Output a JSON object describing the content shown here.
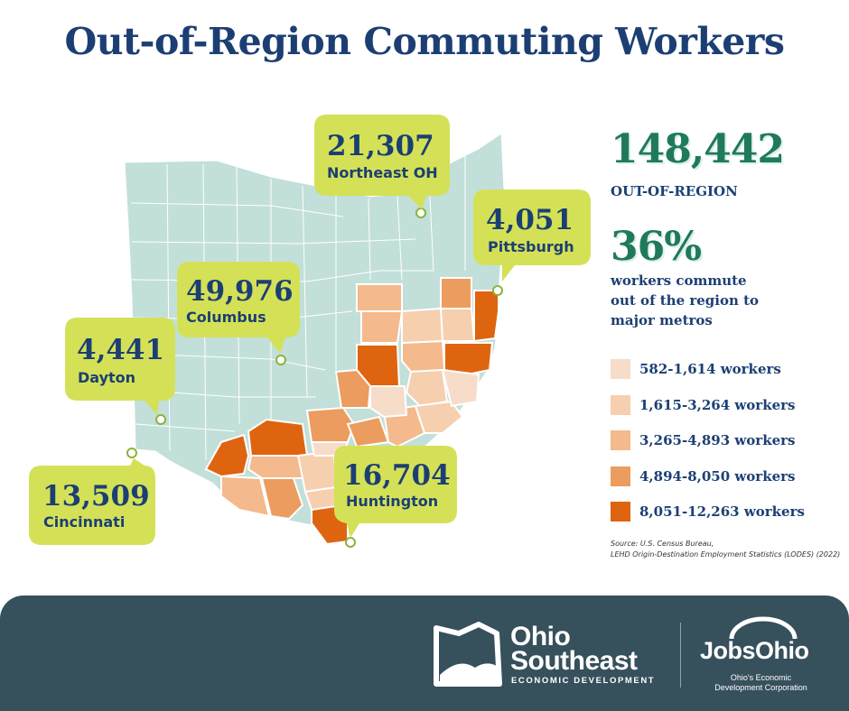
{
  "title": "Out-of-Region Commuting Workers",
  "colors": {
    "title": "#1c3f73",
    "accent_green": "#1f7a5c",
    "state_fill": "#c2dfd9",
    "callout_fill": "#d4e157",
    "footer_bg": "#36505c"
  },
  "stats": {
    "total_value": "148,442",
    "total_label": "OUT-OF-REGION",
    "percent_value": "36%",
    "percent_text": [
      "workers commute",
      "out of the region to",
      "major metros"
    ]
  },
  "legend": [
    {
      "label": "582-1,614 workers",
      "color": "#f7dcc9"
    },
    {
      "label": "1,615-3,264 workers",
      "color": "#f6cfae"
    },
    {
      "label": "3,265-4,893 workers",
      "color": "#f4b98c"
    },
    {
      "label": "4,894-8,050 workers",
      "color": "#ec9c5f"
    },
    {
      "label": "8,051-12,263 workers",
      "color": "#df6410"
    }
  ],
  "source": [
    "Source: U.S. Census Bureau,",
    "LEHD Origin-Destination Employment Statistics (LODES) (2022)"
  ],
  "metros": [
    {
      "value": "21,307",
      "name": "Northeast OH"
    },
    {
      "value": "4,051",
      "name": "Pittsburgh"
    },
    {
      "value": "49,976",
      "name": "Columbus"
    },
    {
      "value": "4,441",
      "name": "Dayton"
    },
    {
      "value": "13,509",
      "name": "Cincinnati"
    },
    {
      "value": "16,704",
      "name": "Huntington"
    }
  ],
  "footer": {
    "ohio_southeast_name": [
      "Ohio",
      "Southeast"
    ],
    "ohio_southeast_sub": "ECONOMIC DEVELOPMENT",
    "jobsohio_name": "JobsOhio",
    "jobsohio_sub": [
      "Ohio's Economic",
      "Development Corporation"
    ]
  }
}
